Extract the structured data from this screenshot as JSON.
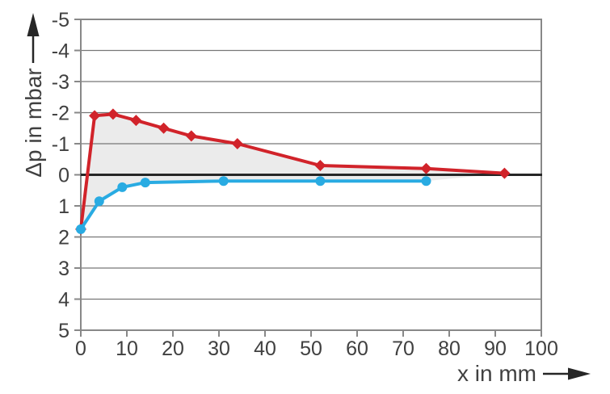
{
  "figure": {
    "background": "#ffffff"
  },
  "chart_data": {
    "type": "line",
    "title": "",
    "xlabel": "x in mm",
    "ylabel": "Δp in mbar",
    "x_axis": {
      "min": 0,
      "max": 100,
      "tick_step": 10,
      "tick_labels": [
        "0",
        "10",
        "20",
        "30",
        "40",
        "50",
        "60",
        "70",
        "80",
        "90",
        "100"
      ]
    },
    "y_axis": {
      "min": -5,
      "max": 5,
      "tick_step": 1,
      "inverted": true,
      "tick_labels": [
        "-5",
        "-4",
        "-3",
        "-2",
        "-1",
        "0",
        "1",
        "2",
        "3",
        "4",
        "5"
      ]
    },
    "grid": "horizontal-only",
    "zero_line": true,
    "legend": "none",
    "series": [
      {
        "name": "pressure-upper-red",
        "color": "#d1232a",
        "marker": "diamond",
        "points": [
          [
            0,
            1.75
          ],
          [
            3,
            -1.9
          ],
          [
            7,
            -1.95
          ],
          [
            12,
            -1.75
          ],
          [
            18,
            -1.5
          ],
          [
            24,
            -1.25
          ],
          [
            34,
            -1.0
          ],
          [
            52,
            -0.3
          ],
          [
            75,
            -0.2
          ],
          [
            92,
            -0.05
          ]
        ]
      },
      {
        "name": "pressure-lower-blue",
        "color": "#29abe2",
        "marker": "circle",
        "points": [
          [
            0,
            1.75
          ],
          [
            4,
            0.85
          ],
          [
            9,
            0.4
          ],
          [
            14,
            0.25
          ],
          [
            31,
            0.2
          ],
          [
            52,
            0.2
          ],
          [
            75,
            0.2
          ]
        ]
      }
    ],
    "fill_between": {
      "upper": "pressure-upper-red",
      "lower": "pressure-lower-blue",
      "color": "#ebebeb"
    }
  },
  "colors": {
    "grid": "#777777",
    "frame": "#888888",
    "zero_line": "#262626",
    "text": "#404040",
    "arrow": "#262626"
  }
}
